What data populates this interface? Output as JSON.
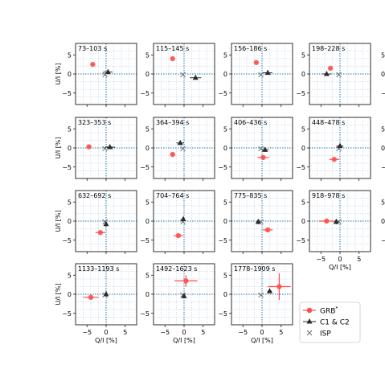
{
  "chart_data": {
    "type": "scatter",
    "layout": {
      "rows": 4,
      "cols": 4
    },
    "xlabel": "Q/I [%]",
    "ylabel": "U/I [%]",
    "xlim": [
      -8,
      8
    ],
    "ylim": [
      -8,
      8
    ],
    "xticks": [
      -5,
      0,
      5
    ],
    "yticks": [
      -5,
      0,
      5
    ],
    "grid": true,
    "colors": {
      "grb": "#ff4b4b",
      "c1c2": "#2b2b2b",
      "isp": "#666666",
      "zeroline": "#1f77b4",
      "grid": "#b0c4de"
    },
    "legend": {
      "placement": "lower-right",
      "entries": [
        {
          "key": "grb",
          "label": "GRB",
          "superscript": "*"
        },
        {
          "key": "c1c2",
          "label": "C1 & C2",
          "superscript": ""
        },
        {
          "key": "isp",
          "label": "ISP",
          "superscript": ""
        }
      ]
    },
    "isp": {
      "x": -0.3,
      "y": -0.2
    },
    "panels": [
      {
        "label": "73–103 s",
        "grb": {
          "x": -3.5,
          "y": 2.5,
          "xerr": 0.4,
          "yerr": 0.3
        },
        "c1c2": {
          "x": 0.5,
          "y": 0.5,
          "xerr": 1.2,
          "yerr": 0.3
        }
      },
      {
        "label": "115–145 s",
        "grb": {
          "x": -3.0,
          "y": 4.0,
          "xerr": 0.4,
          "yerr": 0.3
        },
        "c1c2": {
          "x": 3.0,
          "y": -1.0,
          "xerr": 1.5,
          "yerr": 0.3
        }
      },
      {
        "label": "156–186 s",
        "grb": {
          "x": -1.5,
          "y": 3.0,
          "xerr": 0.4,
          "yerr": 0.3
        },
        "c1c2": {
          "x": 1.5,
          "y": 0.3,
          "xerr": 1.2,
          "yerr": 0.3
        }
      },
      {
        "label": "198–228 s",
        "grb": {
          "x": -2.5,
          "y": 1.5,
          "xerr": 0.4,
          "yerr": 0.3
        },
        "c1c2": {
          "x": -3.5,
          "y": 0.0,
          "xerr": 1.2,
          "yerr": 0.3
        }
      },
      {
        "label": "323–353 s",
        "grb": {
          "x": -4.5,
          "y": 0.3,
          "xerr": 0.6,
          "yerr": 0.4
        },
        "c1c2": {
          "x": 1.0,
          "y": 0.2,
          "xerr": 1.3,
          "yerr": 0.3
        }
      },
      {
        "label": "364–394 s",
        "grb": {
          "x": -3.0,
          "y": -1.7,
          "xerr": 0.6,
          "yerr": 0.4
        },
        "c1c2": {
          "x": -1.0,
          "y": 1.3,
          "xerr": 1.0,
          "yerr": 0.3
        }
      },
      {
        "label": "406–436 s",
        "grb": {
          "x": 0.3,
          "y": -2.5,
          "xerr": 1.5,
          "yerr": 0.4
        },
        "c1c2": {
          "x": 0.8,
          "y": -0.5,
          "xerr": 0.9,
          "yerr": 0.4
        }
      },
      {
        "label": "448–478 s",
        "grb": {
          "x": -1.5,
          "y": -3.0,
          "xerr": 1.3,
          "yerr": 0.4
        },
        "c1c2": {
          "x": 0.0,
          "y": 0.5,
          "xerr": 0.9,
          "yerr": 0.4
        }
      },
      {
        "label": "632–692 s",
        "grb": {
          "x": -1.5,
          "y": -3.0,
          "xerr": 1.3,
          "yerr": 0.4
        },
        "c1c2": {
          "x": 0.0,
          "y": -0.8,
          "xerr": 0.4,
          "yerr": 0.6
        }
      },
      {
        "label": "704–764 s",
        "grb": {
          "x": -1.5,
          "y": -3.8,
          "xerr": 1.2,
          "yerr": 0.3
        },
        "c1c2": {
          "x": -0.2,
          "y": 0.5,
          "xerr": 0.4,
          "yerr": 0.4
        }
      },
      {
        "label": "775–835 s",
        "grb": {
          "x": 1.5,
          "y": -2.3,
          "xerr": 1.3,
          "yerr": 0.4
        },
        "c1c2": {
          "x": -1.0,
          "y": -0.2,
          "xerr": 0.4,
          "yerr": 0.3
        }
      },
      {
        "label": "918–978 s",
        "grb": {
          "x": -3.5,
          "y": 0.0,
          "xerr": 2.0,
          "yerr": 0.5
        },
        "c1c2": {
          "x": -1.0,
          "y": -0.2,
          "xerr": 0.5,
          "yerr": 0.3
        }
      },
      {
        "label": "1133–1193 s",
        "grb": {
          "x": -4.0,
          "y": -0.8,
          "xerr": 2.0,
          "yerr": 0.6
        },
        "c1c2": {
          "x": 0.0,
          "y": 0.0,
          "xerr": 0.4,
          "yerr": 0.3
        }
      },
      {
        "label": "1492–1623 s",
        "grb": {
          "x": 0.5,
          "y": 3.5,
          "xerr": 3.0,
          "yerr": 1.5
        },
        "c1c2": {
          "x": 0.0,
          "y": -0.5,
          "xerr": 0.4,
          "yerr": 0.4
        }
      },
      {
        "label": "1778–1909 s",
        "grb": {
          "x": 4.5,
          "y": 2.0,
          "xerr": 3.0,
          "yerr": 3.5
        },
        "c1c2": {
          "x": 2.0,
          "y": 0.8,
          "xerr": 0.6,
          "yerr": 0.4
        }
      }
    ]
  }
}
